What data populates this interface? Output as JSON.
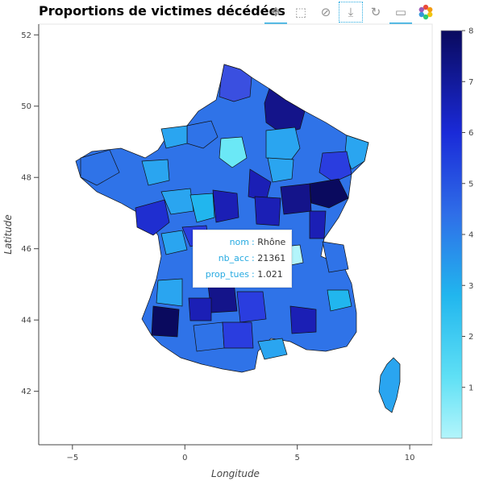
{
  "title": "Proportions de victimes décédées",
  "toolbar": {
    "tools": [
      {
        "name": "pan-tool-icon",
        "glyph": "✥"
      },
      {
        "name": "box-zoom-tool-icon",
        "glyph": "⬚"
      },
      {
        "name": "wheel-zoom-tool-icon",
        "glyph": "⊘"
      },
      {
        "name": "save-tool-icon",
        "glyph": "⤓"
      },
      {
        "name": "reset-tool-icon",
        "glyph": "↻"
      },
      {
        "name": "hover-tool-icon",
        "glyph": "▭"
      },
      {
        "name": "bokeh-logo-icon",
        "glyph": ""
      }
    ]
  },
  "colors": {
    "palette_low": "#b3f5fb",
    "palette_mid": "#2aa5f0",
    "palette_high": "#0a0a5e",
    "accent": "#26aae1"
  },
  "tooltip": {
    "rows": [
      {
        "key": "nom",
        "value": "Rhône"
      },
      {
        "key": "nb_acc",
        "value": "21361"
      },
      {
        "key": "prop_tues",
        "value": "1.021"
      }
    ]
  },
  "chart_data": {
    "type": "choropleth",
    "title": "Proportions de victimes décédées",
    "xlabel": "Longitude",
    "ylabel": "Latitude",
    "xlim": [
      -6.5,
      11
    ],
    "ylim": [
      40.5,
      52.3
    ],
    "xticks": [
      -5,
      0,
      5,
      10
    ],
    "yticks": [
      42,
      44,
      46,
      48,
      50,
      52
    ],
    "colorbar": {
      "range": [
        0,
        8
      ],
      "ticks": [
        1,
        2,
        3,
        4,
        5,
        6,
        7,
        8
      ]
    },
    "regions": [
      {
        "name": "Rhône",
        "value": 1.021
      }
    ]
  }
}
